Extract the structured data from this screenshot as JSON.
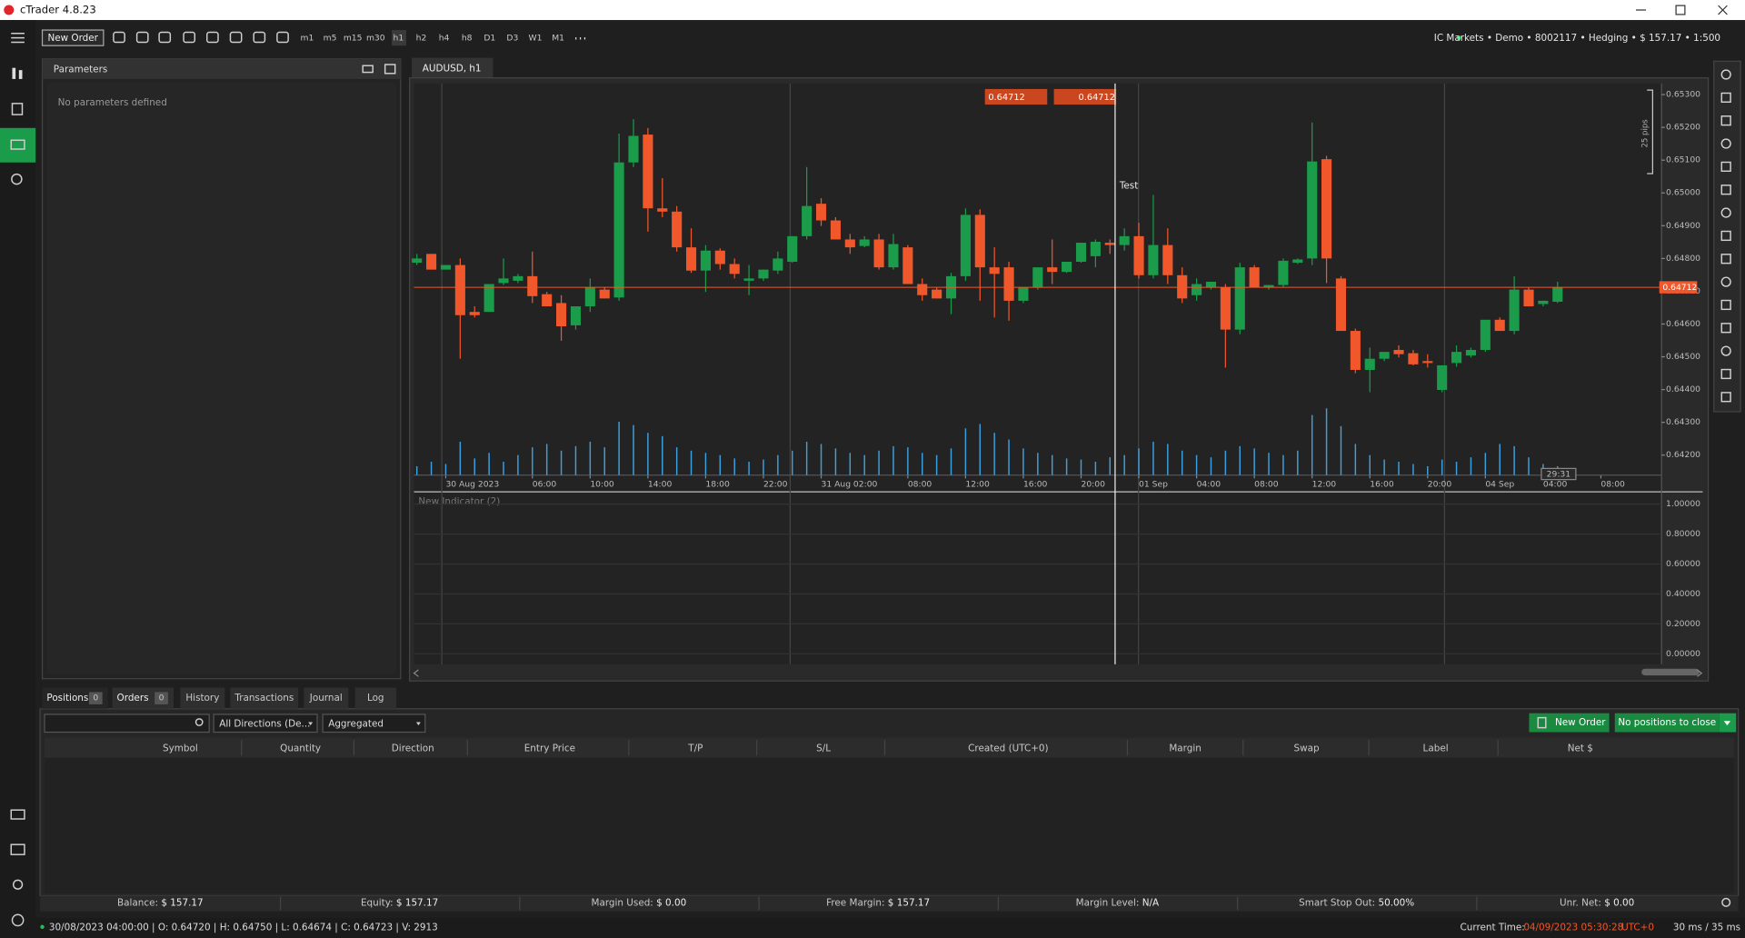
{
  "window": {
    "title": "cTrader 4.8.23"
  },
  "toolbar": {
    "new_order": "New Order",
    "timeframes": [
      "m1",
      "m5",
      "m15",
      "m30",
      "h1",
      "h2",
      "h4",
      "h8",
      "D1",
      "D3",
      "W1",
      "M1"
    ],
    "account": "IC Markets • Demo • 8002117 • Hedging • $ 157.17 • 1:500"
  },
  "parameters": {
    "title": "Parameters",
    "message": "No parameters defined"
  },
  "chart_tab": "AUDUSD, h1",
  "chart_data": {
    "type": "candlestick",
    "open": [
      0.64787,
      0.64814,
      0.64766,
      0.6478,
      0.64637,
      0.64637,
      0.64725,
      0.64732,
      0.64746,
      0.64691,
      0.64664,
      0.64596,
      0.64654,
      0.64705,
      0.64681,
      0.65093,
      0.65178,
      0.64953,
      0.64943,
      0.64834,
      0.64763,
      0.64824,
      0.64783,
      0.64732,
      0.64739,
      0.64763,
      0.6479,
      0.64868,
      0.64967,
      0.64916,
      0.64858,
      0.64838,
      0.64858,
      0.64773,
      0.64834,
      0.64722,
      0.64705,
      0.64678,
      0.64746,
      0.64933,
      0.64773,
      0.64773,
      0.64671,
      0.64712,
      0.64773,
      0.64759,
      0.6479,
      0.64807,
      0.64848,
      0.64841,
      0.64868,
      0.64749,
      0.64841,
      0.64749,
      0.64688,
      0.64712,
      0.64712,
      0.64583,
      0.64773,
      0.64712,
      0.64719,
      0.64787,
      0.648,
      0.65103,
      0.64739,
      0.64579,
      0.6446,
      0.64494,
      0.64521,
      0.64511,
      0.64487,
      0.64399,
      0.64481,
      0.64504,
      0.64521,
      0.64613,
      0.64579,
      0.64705,
      0.64661,
      0.64668
    ],
    "high": [
      0.64814,
      0.64814,
      0.6478,
      0.648,
      0.64654,
      0.64722,
      0.648,
      0.64753,
      0.64821,
      0.64698,
      0.64688,
      0.64654,
      0.64739,
      0.64712,
      0.65181,
      0.65225,
      0.65198,
      0.65045,
      0.6496,
      0.64892,
      0.64841,
      0.64831,
      0.648,
      0.6478,
      0.64766,
      0.64821,
      0.64868,
      0.65079,
      0.64984,
      0.64926,
      0.64875,
      0.64868,
      0.64875,
      0.64875,
      0.64841,
      0.64739,
      0.64712,
      0.64756,
      0.64953,
      0.6495,
      0.64834,
      0.6479,
      0.64712,
      0.64773,
      0.64858,
      0.6479,
      0.64848,
      0.64858,
      0.64858,
      0.64892,
      0.64909,
      0.64994,
      0.64892,
      0.64773,
      0.64739,
      0.64729,
      0.64722,
      0.64787,
      0.6478,
      0.64719,
      0.648,
      0.648,
      0.65215,
      0.65113,
      0.64746,
      0.64586,
      0.64528,
      0.64515,
      0.64535,
      0.64521,
      0.64508,
      0.64474,
      0.64535,
      0.64528,
      0.64613,
      0.6462,
      0.64746,
      0.64712,
      0.64671,
      0.64729
    ],
    "low": [
      0.6478,
      0.64766,
      0.64766,
      0.64494,
      0.6462,
      0.64637,
      0.64719,
      0.64725,
      0.64664,
      0.64654,
      0.64549,
      0.64583,
      0.64637,
      0.64678,
      0.64671,
      0.65079,
      0.64882,
      0.64926,
      0.64821,
      0.64756,
      0.64698,
      0.64766,
      0.64739,
      0.64688,
      0.64732,
      0.64753,
      0.64787,
      0.64858,
      0.64899,
      0.64858,
      0.64814,
      0.64834,
      0.64766,
      0.64766,
      0.64722,
      0.64671,
      0.64678,
      0.6463,
      0.64732,
      0.64671,
      0.6462,
      0.6461,
      0.64664,
      0.64705,
      0.64722,
      0.64756,
      0.64787,
      0.64773,
      0.64814,
      0.64824,
      0.64739,
      0.64739,
      0.64722,
      0.64664,
      0.64671,
      0.64705,
      0.64467,
      0.64569,
      0.64712,
      0.64705,
      0.64712,
      0.64783,
      0.6478,
      0.64725,
      0.64579,
      0.6445,
      0.64392,
      0.64487,
      0.64498,
      0.64474,
      0.64467,
      0.64392,
      0.6447,
      0.64498,
      0.64515,
      0.64579,
      0.64569,
      0.64654,
      0.64654,
      0.64664
    ],
    "close": [
      0.648,
      0.64766,
      0.6478,
      0.64627,
      0.64627,
      0.64722,
      0.64739,
      0.64746,
      0.64685,
      0.64654,
      0.64593,
      0.64654,
      0.64712,
      0.64678,
      0.65093,
      0.65174,
      0.64953,
      0.64943,
      0.64834,
      0.64763,
      0.64824,
      0.64783,
      0.64753,
      0.64739,
      0.64766,
      0.648,
      0.64868,
      0.6496,
      0.64916,
      0.64858,
      0.64834,
      0.64858,
      0.64773,
      0.64844,
      0.64722,
      0.64688,
      0.64678,
      0.64746,
      0.64933,
      0.64773,
      0.64753,
      0.64671,
      0.64712,
      0.64773,
      0.64759,
      0.6479,
      0.64848,
      0.64851,
      0.64841,
      0.64868,
      0.64749,
      0.64841,
      0.64749,
      0.64678,
      0.64722,
      0.64729,
      0.64583,
      0.64773,
      0.64712,
      0.64719,
      0.64793,
      0.64797,
      0.65096,
      0.648,
      0.64579,
      0.6446,
      0.64494,
      0.64515,
      0.64508,
      0.64477,
      0.64481,
      0.64474,
      0.64515,
      0.64521,
      0.64613,
      0.64579,
      0.64705,
      0.64654,
      0.64671,
      0.64712
    ],
    "volume": [
      8,
      12,
      10,
      30,
      15,
      20,
      12,
      18,
      25,
      28,
      22,
      26,
      30,
      25,
      48,
      45,
      38,
      35,
      25,
      22,
      20,
      18,
      15,
      12,
      14,
      18,
      22,
      30,
      28,
      24,
      20,
      18,
      22,
      26,
      25,
      20,
      18,
      24,
      42,
      46,
      38,
      32,
      24,
      20,
      18,
      15,
      14,
      12,
      16,
      18,
      24,
      30,
      28,
      22,
      18,
      16,
      22,
      26,
      24,
      20,
      18,
      22,
      54,
      60,
      44,
      28,
      18,
      14,
      12,
      10,
      8,
      14,
      12,
      16,
      20,
      28,
      26,
      16,
      10,
      8
    ],
    "xlim": [
      -0.2,
      86.2
    ],
    "xticks": [
      {
        "value": 2,
        "label": "30 Aug 2023"
      },
      {
        "value": 8,
        "label": "06:00"
      },
      {
        "value": 12,
        "label": "10:00"
      },
      {
        "value": 16,
        "label": "14:00"
      },
      {
        "value": 20,
        "label": "18:00"
      },
      {
        "value": 24,
        "label": "22:00"
      },
      {
        "value": 28,
        "label": "31 Aug 02:00"
      },
      {
        "value": 34,
        "label": "08:00"
      },
      {
        "value": 38,
        "label": "12:00"
      },
      {
        "value": 42,
        "label": "16:00"
      },
      {
        "value": 46,
        "label": "20:00"
      },
      {
        "value": 50,
        "label": "01 Sep"
      },
      {
        "value": 54,
        "label": "04:00"
      },
      {
        "value": 58,
        "label": "08:00"
      },
      {
        "value": 62,
        "label": "12:00"
      },
      {
        "value": 66,
        "label": "16:00"
      },
      {
        "value": 70,
        "label": "20:00"
      },
      {
        "value": 74,
        "label": "04 Sep"
      },
      {
        "value": 78,
        "label": "04:00"
      },
      {
        "value": 82,
        "label": "08:00"
      }
    ],
    "ylim": [
      0.64139,
      0.65334
    ],
    "yticks": [
      {
        "value": 0.642,
        "label": "0.64200"
      },
      {
        "value": 0.643,
        "label": "0.64300"
      },
      {
        "value": 0.644,
        "label": "0.64400"
      },
      {
        "value": 0.645,
        "label": "0.64500"
      },
      {
        "value": 0.646,
        "label": "0.64600"
      },
      {
        "value": 0.647,
        "label": "0.64700"
      },
      {
        "value": 0.648,
        "label": "0.64800"
      },
      {
        "value": 0.649,
        "label": "0.64900"
      },
      {
        "value": 0.65,
        "label": "0.65000"
      },
      {
        "value": 0.651,
        "label": "0.65100"
      },
      {
        "value": 0.652,
        "label": "0.65200"
      },
      {
        "value": 0.653,
        "label": "0.65300"
      }
    ],
    "up_color": "#1a9c4a",
    "down_color": "#f0572b",
    "volume_color": "#3d9fdc",
    "current_price": 0.64712,
    "sell_price": 0.64712,
    "buy_price": 0.64712,
    "annotation": "Test",
    "pips_label": "25 pips",
    "countdown": "29:31"
  },
  "indicator": {
    "title": "New Indicator (2)",
    "ylim": [
      -0.07,
      1.06
    ],
    "yticks": [
      {
        "value": 1,
        "label": "1.00000"
      },
      {
        "value": 0.8,
        "label": "0.80000"
      },
      {
        "value": 0.6,
        "label": "0.60000"
      },
      {
        "value": 0.4,
        "label": "0.40000"
      },
      {
        "value": 0.2,
        "label": "0.20000"
      },
      {
        "value": 0,
        "label": "0.00000"
      }
    ]
  },
  "positions": {
    "tabs": [
      {
        "label": "Positions",
        "count": 0
      },
      {
        "label": "Orders",
        "count": 0
      },
      {
        "label": "History"
      },
      {
        "label": "Transactions"
      },
      {
        "label": "Journal"
      },
      {
        "label": "Log"
      }
    ],
    "direction_filter": "All Directions (De...",
    "grouping": "Aggregated",
    "new_order": "New Order",
    "close_all": "No positions to close",
    "columns": [
      "Symbol",
      "Quantity",
      "Direction",
      "Entry Price",
      "T/P",
      "S/L",
      "Created (UTC+0)",
      "Margin",
      "Swap",
      "Label",
      "Net $"
    ]
  },
  "account_summary": [
    [
      "Balance:",
      "$ 157.17"
    ],
    [
      "Equity:",
      "$ 157.17"
    ],
    [
      "Margin Used:",
      "$ 0.00"
    ],
    [
      "Free Margin:",
      "$ 157.17"
    ],
    [
      "Margin Level:",
      "N/A"
    ],
    [
      "Smart Stop Out:",
      "50.00%"
    ],
    [
      "Unr. Net:",
      "$ 0.00"
    ]
  ],
  "status": {
    "bar_info": "30/08/2023 04:00:00 | O: 0.64720 | H: 0.64750 | L: 0.64674 | C: 0.64723 | V: 2913",
    "time_label": "Current Time:",
    "time": "04/09/2023 05:30:28",
    "timezone": "UTC+0",
    "latency": "30 ms / 35 ms"
  }
}
